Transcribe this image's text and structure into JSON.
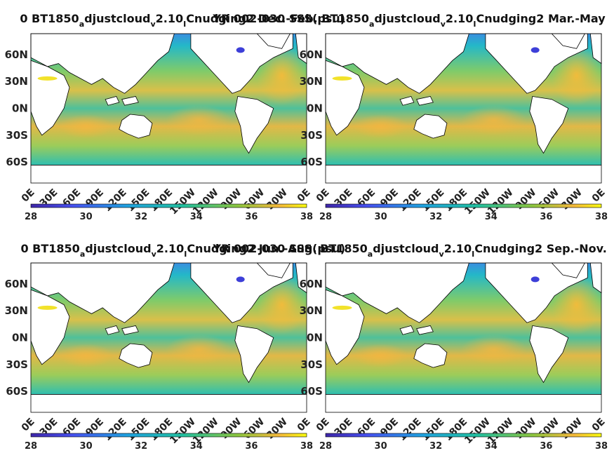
{
  "chart_data": {
    "type": "heatmap",
    "lat_ticks": [
      "60N",
      "30N",
      "0N",
      "30S",
      "60S"
    ],
    "lon_ticks": [
      "0E",
      "30E",
      "60E",
      "90E",
      "120E",
      "150E",
      "180E",
      "150W",
      "120W",
      "90W",
      "60W",
      "30W",
      "0E"
    ],
    "colorbar": {
      "ticks": [
        "28",
        "30",
        "32",
        "34",
        "36",
        "38"
      ],
      "range": [
        28,
        38
      ]
    },
    "panels": [
      {
        "title": "0 BT1850",
        "title_sub1": "a",
        "title_mid": "djustcloud",
        "title_sub2": "v",
        "title_mid2": "2.10",
        "title_sub3": "I",
        "title_end": "Cnudging2 Dec.-Feb.",
        "overlap": "YR 002-030 SSS(psu)"
      },
      {
        "title": "BT1850",
        "title_sub1": "a",
        "title_mid": "djustcloud",
        "title_sub2": "v",
        "title_mid2": "2.10",
        "title_sub3": "I",
        "title_end": "Cnudging2 Mar.-May"
      },
      {
        "title": "0 BT1850",
        "title_sub1": "a",
        "title_mid": "djustcloud",
        "title_sub2": "v",
        "title_mid2": "2.10",
        "title_sub3": "I",
        "title_end": "Cnudging2 Jun.-Aug.",
        "overlap": "YR 002-030 SSS(psu)"
      },
      {
        "title": "BT1850",
        "title_sub1": "a",
        "title_mid": "djustcloud",
        "title_sub2": "v",
        "title_mid2": "2.10",
        "title_sub3": "I",
        "title_end": "Cnudging2 Sep.-Nov."
      }
    ]
  }
}
